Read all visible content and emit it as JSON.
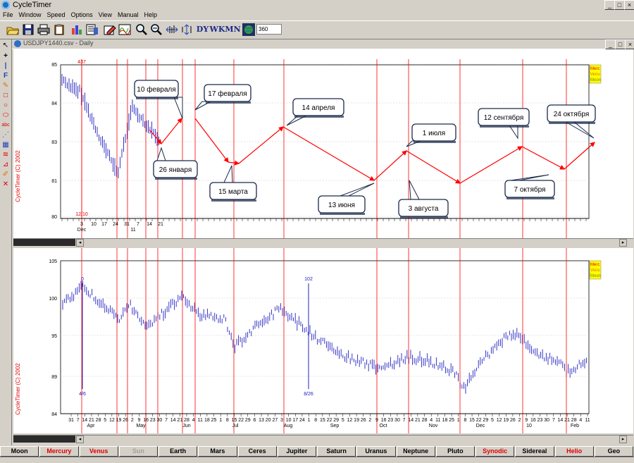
{
  "app": {
    "title": "CycleTimer",
    "window_buttons": [
      "_",
      "□",
      "×"
    ]
  },
  "menu": [
    "File",
    "Window",
    "Speed",
    "Options",
    "View",
    "Manual",
    "Help"
  ],
  "toolbar": {
    "icons": [
      "open-icon",
      "save-icon",
      "print-icon",
      "clipboard-icon",
      "bar-chart-icon",
      "list-icon",
      "edit-icon",
      "wave-icon",
      "zoom-in-icon",
      "zoom-out-icon",
      "fit-icon",
      "fit-vertical-icon",
      "dy-icon",
      "wk-icon",
      "mn-icon",
      "globe-icon"
    ],
    "dy": "DY",
    "wk": "WK",
    "mn": "MN",
    "value": "360"
  },
  "document": {
    "title": "USDJPY1440.csv - Daily"
  },
  "copyright": "CycleTimer (C) 2002",
  "legend": [
    "Merc",
    "Venu",
    "Moon"
  ],
  "top_chart": {
    "y_ticks": [
      "85",
      "84",
      "83",
      "81",
      "80"
    ],
    "x_labels": [
      {
        "label": "3",
        "x": 97
      },
      {
        "label": "10",
        "x": 114
      },
      {
        "label": "17",
        "x": 129
      },
      {
        "label": "24",
        "x": 145
      },
      {
        "label": "31",
        "x": 161
      },
      {
        "label": "7",
        "x": 177
      },
      {
        "label": "14",
        "x": 193
      },
      {
        "label": "21",
        "x": 209
      }
    ],
    "month_labels": [
      {
        "label": "Dec",
        "x": 97
      },
      {
        "label": "11",
        "x": 170
      }
    ],
    "marker_top": "437",
    "marker_bottom": "12/10",
    "callouts": [
      "10 февраля",
      "17 февраля",
      "26 января",
      "15 марта",
      "14 апреля",
      "13 июня",
      "1 июля",
      "3 августа",
      "12 сентября",
      "7 октября",
      "24 октября"
    ]
  },
  "bottom_chart": {
    "y_ticks": [
      "105",
      "100",
      "95",
      "89",
      "84"
    ],
    "x_day_labels": [
      "31",
      "7",
      "14",
      "21",
      "28",
      "5",
      "12",
      "19",
      "26",
      "2",
      "9",
      "16",
      "23",
      "30",
      "7",
      "14",
      "21",
      "28",
      "4",
      "11",
      "18",
      "25",
      "1",
      "8",
      "15",
      "22",
      "29",
      "6",
      "13",
      "20",
      "27",
      "3",
      "10",
      "17",
      "24",
      "1",
      "8",
      "15",
      "22",
      "29",
      "5",
      "12",
      "19",
      "26",
      "2",
      "9",
      "16",
      "23",
      "30",
      "7",
      "14",
      "21",
      "28",
      "4",
      "11",
      "18",
      "25",
      "1",
      "8",
      "15",
      "22",
      "29",
      "5",
      "12",
      "19",
      "26",
      "2",
      "9",
      "16",
      "23",
      "30",
      "7",
      "14",
      "21",
      "28",
      "4",
      "11"
    ],
    "month_labels": [
      {
        "label": "Apr",
        "x": 110
      },
      {
        "label": "May",
        "x": 181
      },
      {
        "label": "Jun",
        "x": 246
      },
      {
        "label": "Jul",
        "x": 315
      },
      {
        "label": "Aug",
        "x": 390
      },
      {
        "label": "Sep",
        "x": 456
      },
      {
        "label": "Oct",
        "x": 525
      },
      {
        "label": "Nov",
        "x": 596
      },
      {
        "label": "Dec",
        "x": 663
      },
      {
        "label": "10",
        "x": 732
      },
      {
        "label": "Feb",
        "x": 797
      }
    ],
    "marker1_top": "0",
    "marker1_bottom": "4/6",
    "marker2_top": "102",
    "marker2_bottom": "8/26"
  },
  "planet_buttons": [
    {
      "label": "Moon",
      "style": "normal"
    },
    {
      "label": "Mercury",
      "style": "red"
    },
    {
      "label": "Venus",
      "style": "red"
    },
    {
      "label": "Sun",
      "style": "grey"
    },
    {
      "label": "Earth",
      "style": "normal"
    },
    {
      "label": "Mars",
      "style": "normal"
    },
    {
      "label": "Ceres",
      "style": "normal"
    },
    {
      "label": "Jupiter",
      "style": "normal"
    },
    {
      "label": "Saturn",
      "style": "normal"
    },
    {
      "label": "Uranus",
      "style": "normal"
    },
    {
      "label": "Neptune",
      "style": "normal"
    },
    {
      "label": "Pluto",
      "style": "normal"
    },
    {
      "label": "Synodic",
      "style": "red"
    },
    {
      "label": "Sidereal",
      "style": "normal"
    },
    {
      "label": "Helio",
      "style": "red"
    },
    {
      "label": "Geo",
      "style": "normal"
    }
  ],
  "colors": {
    "price_bars": "#2020c0",
    "cycle_lines": "#ff0000",
    "legend_bg": "#ffff00"
  }
}
